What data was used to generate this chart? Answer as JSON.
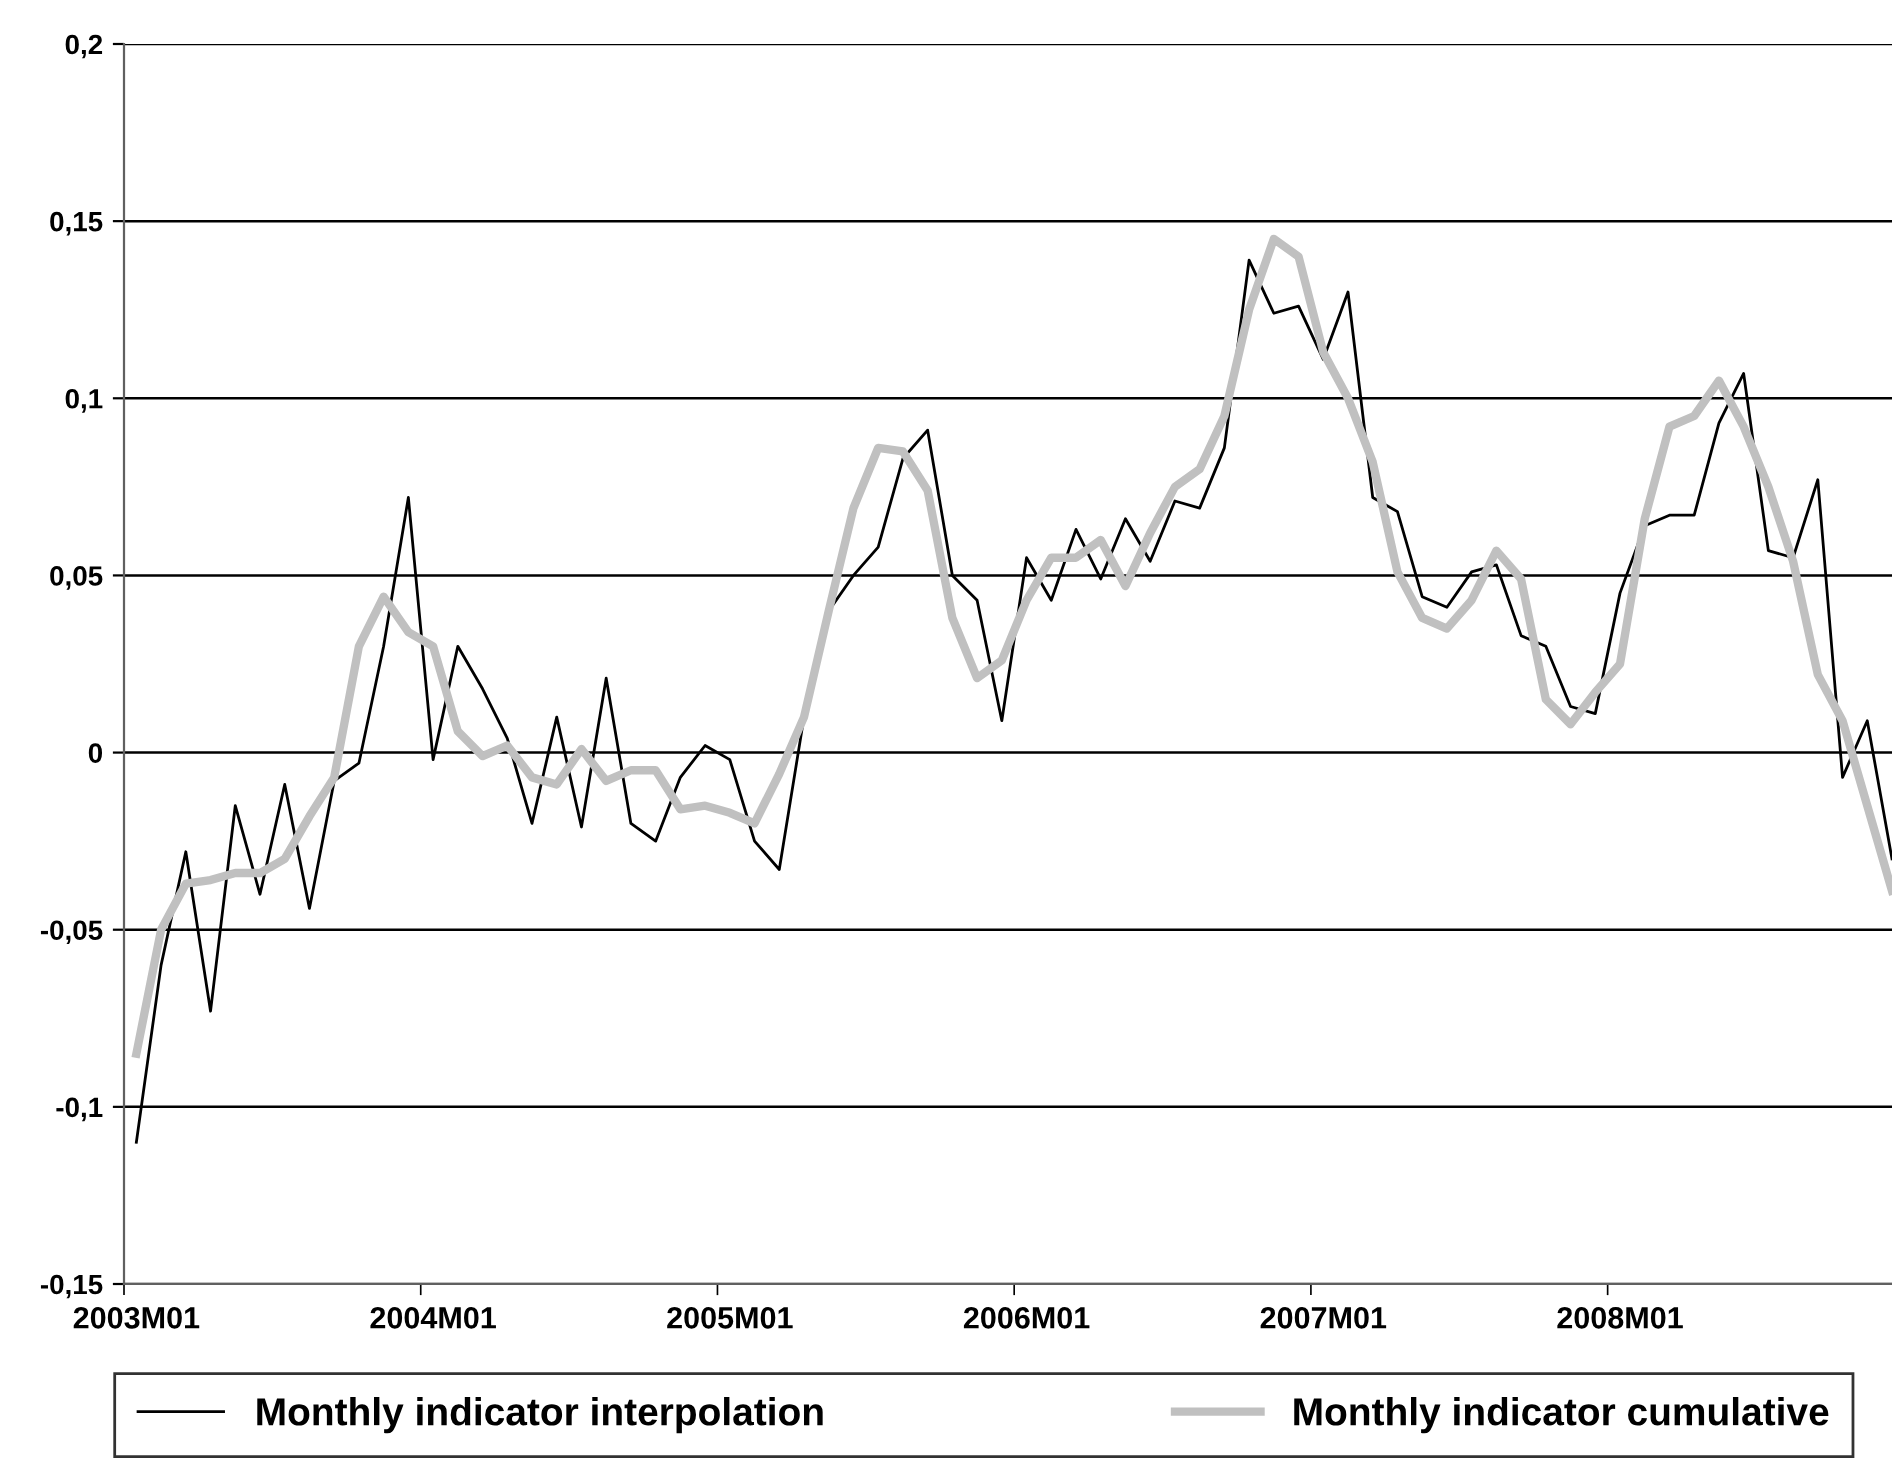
{
  "chart_data": {
    "type": "line",
    "categories": [
      "2003M01",
      null,
      null,
      null,
      null,
      null,
      null,
      null,
      null,
      null,
      null,
      null,
      "2004M01",
      null,
      null,
      null,
      null,
      null,
      null,
      null,
      null,
      null,
      null,
      null,
      "2005M01",
      null,
      null,
      null,
      null,
      null,
      null,
      null,
      null,
      null,
      null,
      null,
      "2006M01",
      null,
      null,
      null,
      null,
      null,
      null,
      null,
      null,
      null,
      null,
      null,
      "2007M01",
      null,
      null,
      null,
      null,
      null,
      null,
      null,
      null,
      null,
      null,
      null,
      "2008M01",
      null,
      null,
      null,
      null,
      null,
      null,
      null,
      null,
      null,
      null,
      null
    ],
    "series": [
      {
        "name": "Monthly indicator interpolation",
        "color": "#000000",
        "values": [
          -0.11,
          -0.06,
          -0.028,
          -0.073,
          -0.015,
          -0.04,
          -0.009,
          -0.044,
          -0.008,
          -0.003,
          0.03,
          0.072,
          -0.002,
          0.03,
          0.018,
          0.004,
          -0.02,
          0.01,
          -0.021,
          0.021,
          -0.02,
          -0.025,
          -0.007,
          0.002,
          -0.002,
          -0.025,
          -0.033,
          0.01,
          0.04,
          0.05,
          0.058,
          0.083,
          0.091,
          0.05,
          0.043,
          0.009,
          0.055,
          0.043,
          0.063,
          0.049,
          0.066,
          0.054,
          0.071,
          0.069,
          0.086,
          0.139,
          0.124,
          0.126,
          0.111,
          0.13,
          0.072,
          0.068,
          0.044,
          0.041,
          0.051,
          0.053,
          0.033,
          0.03,
          0.013,
          0.011,
          0.045,
          0.064,
          0.067,
          0.067,
          0.093,
          0.107,
          0.057,
          0.055,
          0.077,
          -0.007,
          0.009,
          -0.03
        ]
      },
      {
        "name": "Monthly indicator cumulative",
        "color": "#c0c0c0",
        "values": [
          -0.085,
          -0.05,
          -0.037,
          -0.036,
          -0.034,
          -0.034,
          -0.03,
          -0.018,
          -0.007,
          0.03,
          0.044,
          0.034,
          0.03,
          0.006,
          -0.001,
          0.002,
          -0.007,
          -0.009,
          0.001,
          -0.008,
          -0.005,
          -0.005,
          -0.016,
          -0.015,
          -0.017,
          -0.02,
          -0.006,
          0.01,
          0.04,
          0.069,
          0.086,
          0.085,
          0.074,
          0.038,
          0.021,
          0.026,
          0.043,
          0.055,
          0.055,
          0.06,
          0.047,
          0.062,
          0.075,
          0.08,
          0.095,
          0.125,
          0.145,
          0.14,
          0.113,
          0.1,
          0.082,
          0.051,
          0.038,
          0.035,
          0.043,
          0.057,
          0.049,
          0.015,
          0.008,
          0.017,
          0.025,
          0.066,
          0.092,
          0.095,
          0.105,
          0.092,
          0.075,
          0.054,
          0.022,
          0.009,
          -0.015,
          -0.039
        ]
      }
    ],
    "ylim": [
      -0.15,
      0.2
    ],
    "yticks": [
      {
        "value": -0.15,
        "label": "-0,15"
      },
      {
        "value": -0.1,
        "label": "-0,1"
      },
      {
        "value": -0.05,
        "label": "-0,05"
      },
      {
        "value": 0,
        "label": "0"
      },
      {
        "value": 0.05,
        "label": "0,05"
      },
      {
        "value": 0.1,
        "label": "0,1"
      },
      {
        "value": 0.15,
        "label": "0,15"
      },
      {
        "value": 0.2,
        "label": "0,2"
      }
    ],
    "grid": "y",
    "legend": "bottom",
    "marker": "none",
    "line_style": "solid"
  }
}
